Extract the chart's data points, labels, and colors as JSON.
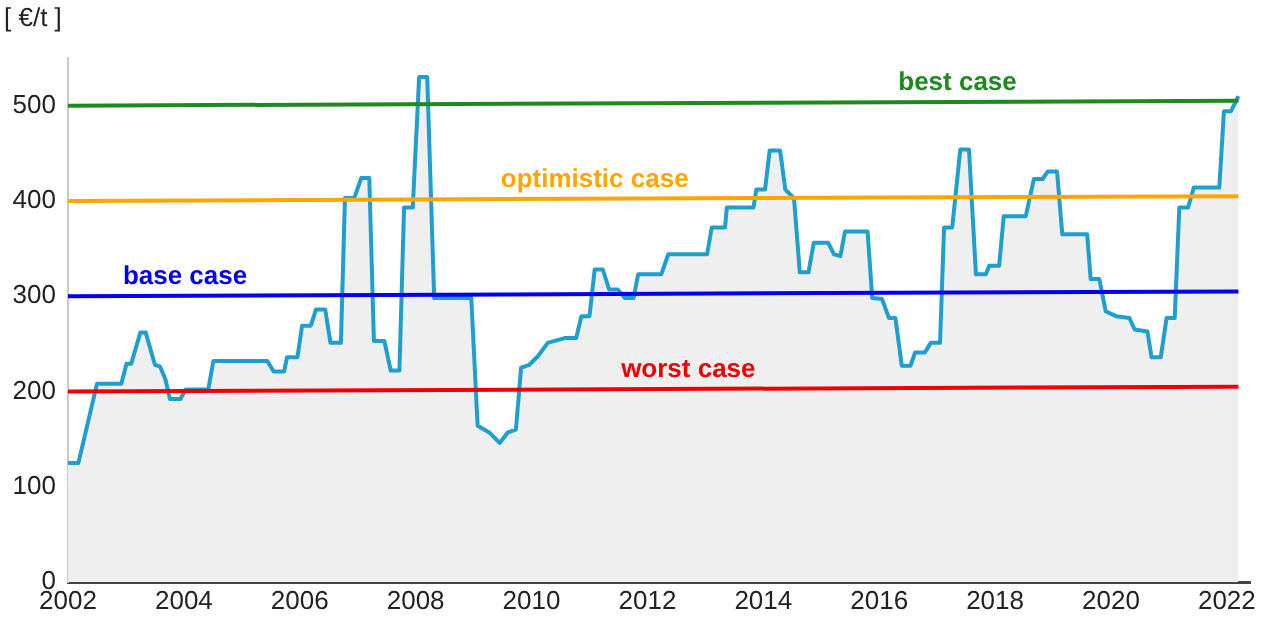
{
  "chart_data": {
    "type": "area",
    "ylabel": "[ €/t ]",
    "xlim": [
      2002,
      2022.4
    ],
    "xticks": [
      2002,
      2004,
      2006,
      2008,
      2010,
      2012,
      2014,
      2016,
      2018,
      2020,
      2022
    ],
    "ylim": [
      0,
      550
    ],
    "yticks": [
      0,
      100,
      200,
      300,
      400,
      500
    ],
    "grid": false,
    "legend": false,
    "marker": "none",
    "series": [
      {
        "type": "area",
        "color": "#1e9fd0",
        "x": [
          2002.0,
          2002.18,
          2002.5,
          2002.92,
          2003.01,
          2003.09,
          2003.25,
          2003.34,
          2003.5,
          2003.59,
          2003.68,
          2003.76,
          2003.94,
          2004.03,
          2004.42,
          2004.51,
          2005.44,
          2005.55,
          2005.73,
          2005.78,
          2005.96,
          2006.04,
          2006.19,
          2006.28,
          2006.44,
          2006.53,
          2006.71,
          2006.78,
          2006.94,
          2007.06,
          2007.2,
          2007.28,
          2007.46,
          2007.57,
          2007.72,
          2007.8,
          2007.95,
          2008.06,
          2008.2,
          2008.32,
          2008.96,
          2009.07,
          2009.27,
          2009.45,
          2009.59,
          2009.73,
          2009.82,
          2009.96,
          2010.11,
          2010.28,
          2010.57,
          2010.77,
          2010.86,
          2011.0,
          2011.09,
          2011.23,
          2011.34,
          2011.49,
          2011.61,
          2011.76,
          2011.84,
          2012.24,
          2012.36,
          2013.03,
          2013.11,
          2013.34,
          2013.37,
          2013.83,
          2013.88,
          2014.03,
          2014.11,
          2014.29,
          2014.38,
          2014.53,
          2014.63,
          2014.78,
          2014.87,
          2015.12,
          2015.22,
          2015.33,
          2015.41,
          2015.8,
          2015.88,
          2016.05,
          2016.17,
          2016.28,
          2016.39,
          2016.54,
          2016.62,
          2016.79,
          2016.89,
          2017.05,
          2017.12,
          2017.26,
          2017.4,
          2017.55,
          2017.67,
          2017.84,
          2017.9,
          2018.07,
          2018.15,
          2018.53,
          2018.67,
          2018.82,
          2018.91,
          2019.07,
          2019.16,
          2019.59,
          2019.65,
          2019.8,
          2019.91,
          2020.09,
          2020.32,
          2020.41,
          2020.63,
          2020.7,
          2020.86,
          2020.96,
          2021.1,
          2021.18,
          2021.33,
          2021.43,
          2021.87,
          2021.95,
          2022.07,
          2022.2
        ],
        "values": [
          125,
          125,
          208,
          208,
          229,
          229,
          262,
          262,
          228,
          226,
          213,
          192,
          192,
          202,
          202,
          232,
          232,
          221,
          221,
          236,
          236,
          269,
          269,
          286,
          286,
          251,
          251,
          403,
          403,
          424,
          424,
          253,
          253,
          222,
          222,
          393,
          393,
          530,
          530,
          298,
          298,
          164,
          157,
          146,
          157,
          160,
          225,
          228,
          237,
          251,
          256,
          256,
          279,
          279,
          328,
          328,
          307,
          307,
          298,
          298,
          323,
          323,
          344,
          344,
          372,
          372,
          393,
          393,
          412,
          412,
          453,
          453,
          412,
          403,
          325,
          325,
          356,
          356,
          344,
          342,
          368,
          368,
          298,
          297,
          277,
          277,
          227,
          227,
          241,
          241,
          251,
          251,
          372,
          372,
          454,
          454,
          323,
          323,
          332,
          332,
          384,
          384,
          423,
          423,
          431,
          431,
          365,
          365,
          318,
          318,
          284,
          279,
          277,
          265,
          263,
          236,
          236,
          277,
          277,
          393,
          393,
          414,
          414,
          494,
          494,
          510
        ]
      },
      {
        "type": "line",
        "name": "best case",
        "color": "#1e8a1e",
        "x": [
          2002,
          2022.2
        ],
        "values": [
          500,
          505
        ]
      },
      {
        "type": "line",
        "name": "optimistic case",
        "color": "#ffa500",
        "x": [
          2002,
          2022.2
        ],
        "values": [
          400,
          405
        ]
      },
      {
        "type": "line",
        "name": "base case",
        "color": "#0000ee",
        "x": [
          2002,
          2022.2
        ],
        "values": [
          300,
          305
        ]
      },
      {
        "type": "line",
        "name": "worst case",
        "color": "#ee0000",
        "x": [
          2002,
          2022.2
        ],
        "values": [
          200,
          205
        ]
      }
    ]
  }
}
